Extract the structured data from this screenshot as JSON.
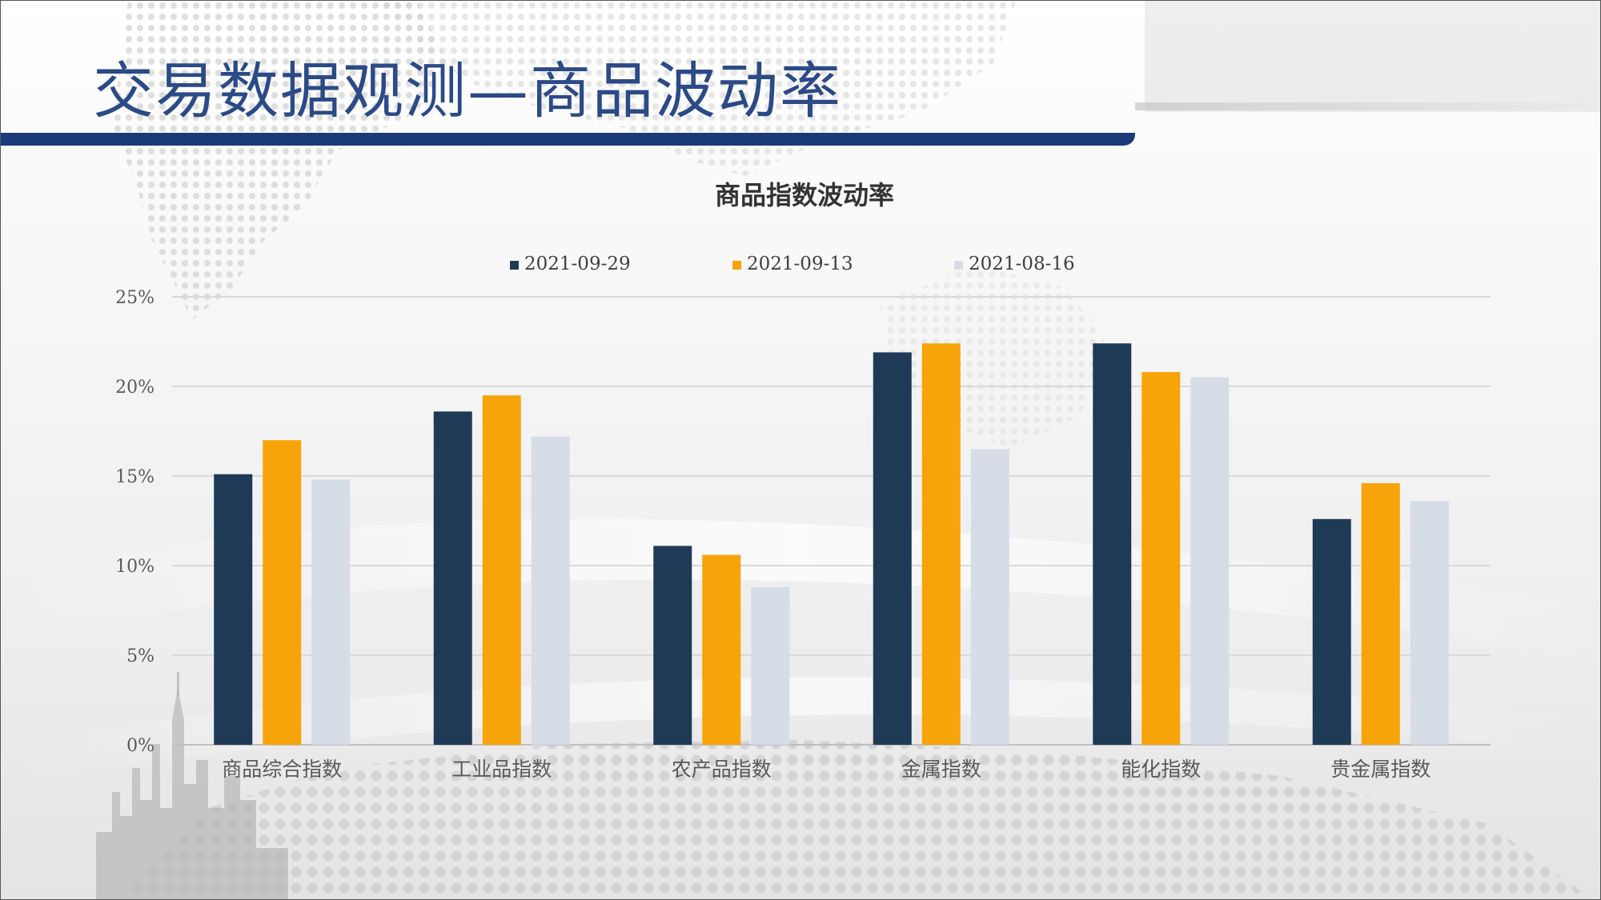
{
  "slide": {
    "title": "交易数据观测—商品波动率"
  },
  "colors": {
    "title": "#2b4a86",
    "title_bar": "#1a3a7a",
    "series": [
      "#1f3a56",
      "#f7a40a",
      "#d6dde6"
    ],
    "gridline": "#d9d9d9",
    "axis_text": "#595959"
  },
  "chart_data": {
    "type": "bar",
    "title": "商品指数波动率",
    "xlabel": "",
    "ylabel": "",
    "categories": [
      "商品综合指数",
      "工业品指数",
      "农产品指数",
      "金属指数",
      "能化指数",
      "贵金属指数"
    ],
    "series": [
      {
        "name": "2021-09-29",
        "values": [
          15.1,
          18.6,
          11.1,
          21.9,
          22.4,
          12.6
        ]
      },
      {
        "name": "2021-09-13",
        "values": [
          17.0,
          19.5,
          10.6,
          22.4,
          20.8,
          14.6
        ]
      },
      {
        "name": "2021-08-16",
        "values": [
          14.8,
          17.2,
          8.8,
          16.5,
          20.5,
          13.6
        ]
      }
    ],
    "ylim": [
      0,
      25
    ],
    "yticks": [
      "0%",
      "5%",
      "10%",
      "15%",
      "20%",
      "25%"
    ],
    "ytick_values": [
      0,
      5,
      10,
      15,
      20,
      25
    ],
    "grid": true,
    "legend_position": "top-center"
  }
}
